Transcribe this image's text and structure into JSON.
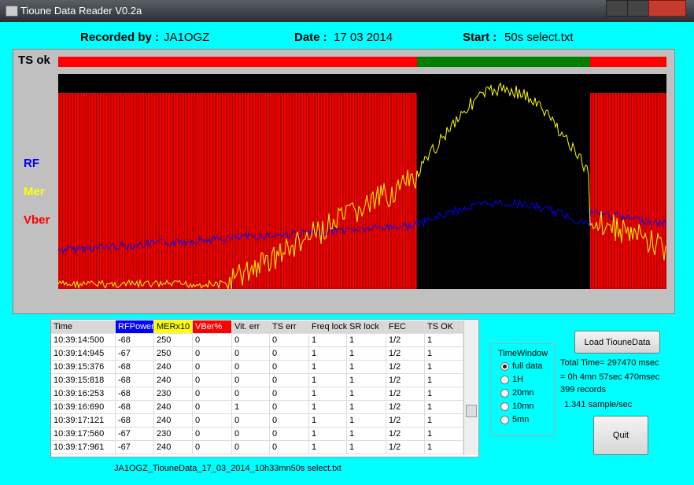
{
  "window": {
    "title": "Tioune Data Reader V0.2a"
  },
  "header": {
    "recorded_by_label": "Recorded by :",
    "recorded_by": "JA1OGZ",
    "date_label": "Date :",
    "date": "17 03 2014",
    "start_label": "Start :",
    "start": "50s select.txt"
  },
  "plot": {
    "status": "TS ok",
    "legend": [
      "RF",
      "Mer",
      "Vber"
    ]
  },
  "table": {
    "columns": [
      "Time",
      "RFPower",
      "MERx10",
      "VBer%",
      "Vit. err",
      "TS err",
      "Freq lock",
      "SR lock",
      "FEC",
      "TS OK"
    ],
    "rows": [
      [
        "10:39:14:500",
        "-68",
        "250",
        "0",
        "0",
        "0",
        "1",
        "1",
        "1/2",
        "1"
      ],
      [
        "10:39:14:945",
        "-67",
        "250",
        "0",
        "0",
        "0",
        "1",
        "1",
        "1/2",
        "1"
      ],
      [
        "10:39:15:376",
        "-68",
        "240",
        "0",
        "0",
        "0",
        "1",
        "1",
        "1/2",
        "1"
      ],
      [
        "10:39:15:818",
        "-68",
        "240",
        "0",
        "0",
        "0",
        "1",
        "1",
        "1/2",
        "1"
      ],
      [
        "10:39:16:253",
        "-68",
        "230",
        "0",
        "0",
        "0",
        "1",
        "1",
        "1/2",
        "1"
      ],
      [
        "10:39:16:690",
        "-68",
        "240",
        "0",
        "1",
        "0",
        "1",
        "1",
        "1/2",
        "1"
      ],
      [
        "10:39:17:121",
        "-68",
        "240",
        "0",
        "0",
        "0",
        "1",
        "1",
        "1/2",
        "1"
      ],
      [
        "10:39:17:560",
        "-67",
        "230",
        "0",
        "0",
        "0",
        "1",
        "1",
        "1/2",
        "1"
      ],
      [
        "10:39:17:961",
        "-67",
        "240",
        "0",
        "0",
        "0",
        "1",
        "1",
        "1/2",
        "1"
      ]
    ]
  },
  "time_window": {
    "title": "TimeWindow",
    "options": [
      "full data",
      "1H",
      "20mn",
      "10mn",
      "5mn"
    ]
  },
  "load_button": "Load TiouneData",
  "info": [
    "Total Time= 297470 msec",
    "= 0h 4mn 57sec 470msec",
    "399 records",
    "1.341 sample/sec"
  ],
  "quit_button": "Quit",
  "filename": "JA1OGZ_TiouneData_17_03_2014_10h33mn50s select.txt"
}
